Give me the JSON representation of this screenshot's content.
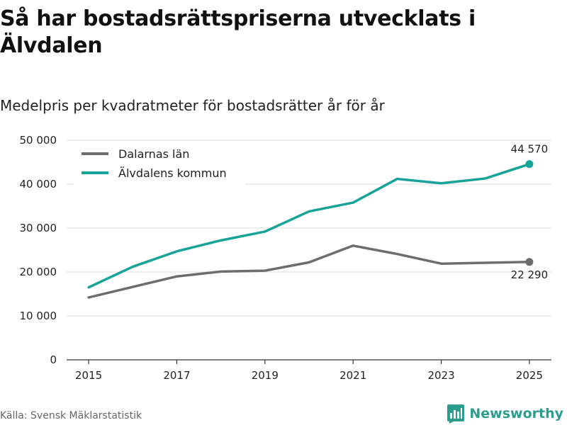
{
  "title": "Så har bostadsrättspriserna utvecklats i Älvdalen",
  "subtitle": "Medelpris per kvadratmeter för bostadsrätter år för år",
  "source": "Källa: Svensk Mäklarstatistik",
  "brand": {
    "name": "Newsworthy",
    "icon": "newsworthy-logo-icon"
  },
  "colors": {
    "teal": "#17a398",
    "grey": "#6d6d70",
    "grid": "#dddddd",
    "axis": "#333333",
    "brand": "#2a9d8f"
  },
  "chart_data": {
    "type": "line",
    "title": "Så har bostadsrättspriserna utvecklats i Älvdalen",
    "subtitle": "Medelpris per kvadratmeter för bostadsrätter år för år",
    "xlabel": "",
    "ylabel": "",
    "x": [
      2015,
      2016,
      2017,
      2018,
      2019,
      2020,
      2021,
      2022,
      2023,
      2024,
      2025
    ],
    "xticks": [
      2015,
      2017,
      2019,
      2021,
      2023,
      2025
    ],
    "xtick_labels": [
      "2015",
      "2017",
      "2019",
      "2021",
      "2023",
      "2025"
    ],
    "xlim": [
      2014.5,
      2025.5
    ],
    "ylim": [
      0,
      50000
    ],
    "yticks": [
      0,
      10000,
      20000,
      30000,
      40000,
      50000
    ],
    "ytick_labels": [
      "0",
      "10 000",
      "20 000",
      "30 000",
      "40 000",
      "50 000"
    ],
    "grid": true,
    "legend_position": "top-left",
    "series": [
      {
        "name": "Dalarnas län",
        "color": "#6d6d70",
        "values": [
          14200,
          16600,
          19000,
          20100,
          20300,
          22200,
          26000,
          24100,
          21900,
          22100,
          22290
        ],
        "end_label": "22 290"
      },
      {
        "name": "Älvdalens kommun",
        "color": "#17a398",
        "values": [
          16500,
          21200,
          24700,
          27200,
          29200,
          33800,
          35800,
          41200,
          40200,
          41300,
          44570
        ],
        "end_label": "44 570"
      }
    ]
  }
}
